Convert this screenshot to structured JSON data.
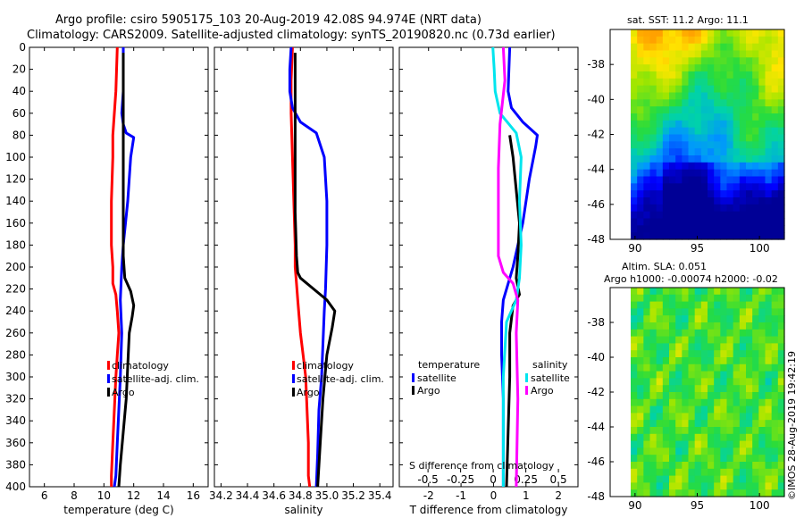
{
  "title": {
    "line1": "Argo profile: csiro 5905175_103 20-Aug-2019 42.08S 94.974E (NRT data)",
    "line2": "Climatology: CARS2009. Satellite-adjusted climatology: synTS_20190820.nc (0.73d earlier)"
  },
  "colors": {
    "climatology": "#ff0000",
    "satellite": "#0000ff",
    "argo": "#000000",
    "sat_salinity": "#00e5ee",
    "argo_salinity": "#ff00ff"
  },
  "depth_axis": {
    "range": [
      0,
      400
    ],
    "ticks": [
      0,
      20,
      40,
      60,
      80,
      100,
      120,
      140,
      160,
      180,
      200,
      220,
      240,
      260,
      280,
      300,
      320,
      340,
      360,
      380,
      400
    ]
  },
  "chart_data": [
    {
      "type": "line",
      "name": "temperature",
      "xlabel": "temperature (deg C)",
      "xlim": [
        5,
        17
      ],
      "xticks": [
        6,
        8,
        10,
        12,
        14,
        16
      ],
      "ylim": [
        0,
        400
      ],
      "legend": {
        "position": "lower-center",
        "entries": [
          "climatology",
          "satellite-adj. clim.",
          "Argo"
        ]
      },
      "series": [
        {
          "name": "climatology",
          "color": "#ff0000",
          "x": [
            10.9,
            10.8,
            10.7,
            10.6,
            10.6,
            10.5,
            10.5,
            10.6,
            10.6,
            10.8,
            10.9,
            11.0,
            10.9,
            10.8,
            10.7,
            10.6,
            10.5,
            10.5
          ],
          "y": [
            0,
            40,
            60,
            80,
            100,
            140,
            180,
            200,
            215,
            225,
            240,
            260,
            280,
            300,
            330,
            360,
            390,
            400
          ]
        },
        {
          "name": "satellite-adj. clim.",
          "color": "#0000ff",
          "x": [
            11.3,
            11.3,
            11.2,
            11.3,
            11.5,
            12.0,
            11.8,
            11.6,
            11.3,
            11.2,
            11.1,
            11.2,
            11.1,
            11.0,
            10.9,
            10.8,
            10.7
          ],
          "y": [
            0,
            40,
            60,
            70,
            78,
            82,
            100,
            140,
            180,
            200,
            230,
            260,
            300,
            330,
            360,
            390,
            400
          ]
        },
        {
          "name": "Argo",
          "color": "#000000",
          "x": [
            11.3,
            11.3,
            11.3,
            11.3,
            11.3,
            11.4,
            11.8,
            12.0,
            11.9,
            11.7,
            11.6,
            11.5,
            11.3,
            11.1,
            11.0
          ],
          "y": [
            5,
            50,
            100,
            150,
            190,
            210,
            222,
            235,
            245,
            260,
            290,
            320,
            350,
            380,
            400
          ]
        }
      ]
    },
    {
      "type": "line",
      "name": "salinity",
      "xlabel": "salinity",
      "xlim": [
        34.15,
        35.5
      ],
      "xticks": [
        34.2,
        34.4,
        34.6,
        34.8,
        35.0,
        35.2,
        35.4
      ],
      "ylim": [
        0,
        400
      ],
      "legend": {
        "position": "lower-center",
        "entries": [
          "climatology",
          "satellite-adj. clim.",
          "Argo"
        ]
      },
      "series": [
        {
          "name": "climatology",
          "color": "#ff0000",
          "x": [
            34.74,
            34.73,
            34.73,
            34.74,
            34.75,
            34.76,
            34.76,
            34.77,
            34.78,
            34.79,
            34.8,
            34.82,
            34.84,
            34.85,
            34.86,
            34.86,
            34.87
          ],
          "y": [
            0,
            30,
            60,
            100,
            140,
            180,
            200,
            215,
            230,
            245,
            260,
            280,
            300,
            330,
            360,
            390,
            400
          ]
        },
        {
          "name": "satellite-adj. clim.",
          "color": "#0000ff",
          "x": [
            34.73,
            34.72,
            34.72,
            34.74,
            34.8,
            34.92,
            34.98,
            35.0,
            35.0,
            34.99,
            34.98,
            34.97,
            34.96,
            34.94,
            34.93,
            34.92
          ],
          "y": [
            0,
            20,
            40,
            55,
            68,
            78,
            100,
            140,
            180,
            220,
            240,
            270,
            300,
            330,
            370,
            400
          ]
        },
        {
          "name": "Argo",
          "color": "#000000",
          "x": [
            34.76,
            34.76,
            34.76,
            34.77,
            34.78,
            34.8,
            34.9,
            35.0,
            35.06,
            35.04,
            35.0,
            34.97,
            34.95,
            34.93
          ],
          "y": [
            5,
            100,
            150,
            190,
            205,
            210,
            220,
            230,
            240,
            255,
            280,
            320,
            360,
            400
          ]
        }
      ]
    },
    {
      "type": "line",
      "name": "difference-from-climatology",
      "xlabel": "T difference from climatology",
      "xlabel_top": "S difference from climatology",
      "xlim": [
        -2.9,
        2.6
      ],
      "xticks": [
        -2,
        -1,
        0,
        1,
        2
      ],
      "xticks_top": [
        -0.5,
        -0.25,
        0,
        0.25,
        0.5
      ],
      "ylim": [
        0,
        400
      ],
      "legend": {
        "position": "lower-center",
        "entries": [
          "temperature",
          "satellite",
          "Argo",
          "salinity",
          "satellite",
          "Argo"
        ]
      },
      "series": [
        {
          "name": "temperature satellite",
          "color": "#0000ff",
          "x": [
            0.5,
            0.45,
            0.55,
            0.9,
            1.35,
            1.3,
            1.1,
            0.9,
            0.6,
            0.3,
            0.25,
            0.25,
            0.3,
            0.3,
            0.3
          ],
          "y": [
            0,
            40,
            55,
            68,
            80,
            90,
            120,
            160,
            200,
            230,
            250,
            280,
            320,
            360,
            400
          ]
        },
        {
          "name": "temperature Argo",
          "color": "#000000",
          "x": [
            0.5,
            0.6,
            0.7,
            0.8,
            0.75,
            0.7,
            0.8,
            0.6,
            0.5,
            0.5,
            0.45,
            0.4
          ],
          "y": [
            80,
            100,
            130,
            160,
            190,
            210,
            225,
            235,
            260,
            300,
            350,
            400
          ]
        },
        {
          "name": "salinity satellite",
          "color": "#00e5ee",
          "x": [
            -0.02,
            0.02,
            0.05,
            0.2,
            0.7,
            0.85,
            0.8,
            0.85,
            0.8,
            0.7,
            0.4,
            0.3,
            0.3,
            0.3
          ],
          "y": [
            0,
            20,
            40,
            60,
            78,
            100,
            140,
            180,
            210,
            230,
            250,
            300,
            350,
            400
          ]
        },
        {
          "name": "salinity Argo",
          "color": "#ff00ff",
          "x": [
            0.3,
            0.35,
            0.2,
            0.15,
            0.15,
            0.15,
            0.3,
            0.6,
            0.75,
            0.7,
            0.75,
            0.7
          ],
          "y": [
            0,
            30,
            70,
            110,
            160,
            190,
            205,
            215,
            230,
            260,
            320,
            400
          ]
        }
      ]
    },
    {
      "type": "heatmap",
      "name": "sat-sst-map",
      "title": "sat. SST: 11.2  Argo: 11.1",
      "xlim": [
        88,
        102
      ],
      "ylim": [
        -48,
        -36
      ],
      "xticks": [
        90,
        95,
        100
      ],
      "yticks": [
        -38,
        -40,
        -42,
        -44,
        -46,
        -48
      ]
    },
    {
      "type": "heatmap",
      "name": "altimetry-sla-map",
      "title": "Altim. SLA: 0.051",
      "subtitle": "Argo h1000: -0.00074 h2000: -0.02",
      "xlim": [
        88,
        102
      ],
      "ylim": [
        -48,
        -36
      ],
      "xticks": [
        90,
        95,
        100
      ],
      "yticks": [
        -38,
        -40,
        -42,
        -44,
        -46,
        -48
      ]
    }
  ],
  "watermark": "©IMOS 28-Aug-2019 19:42:19"
}
